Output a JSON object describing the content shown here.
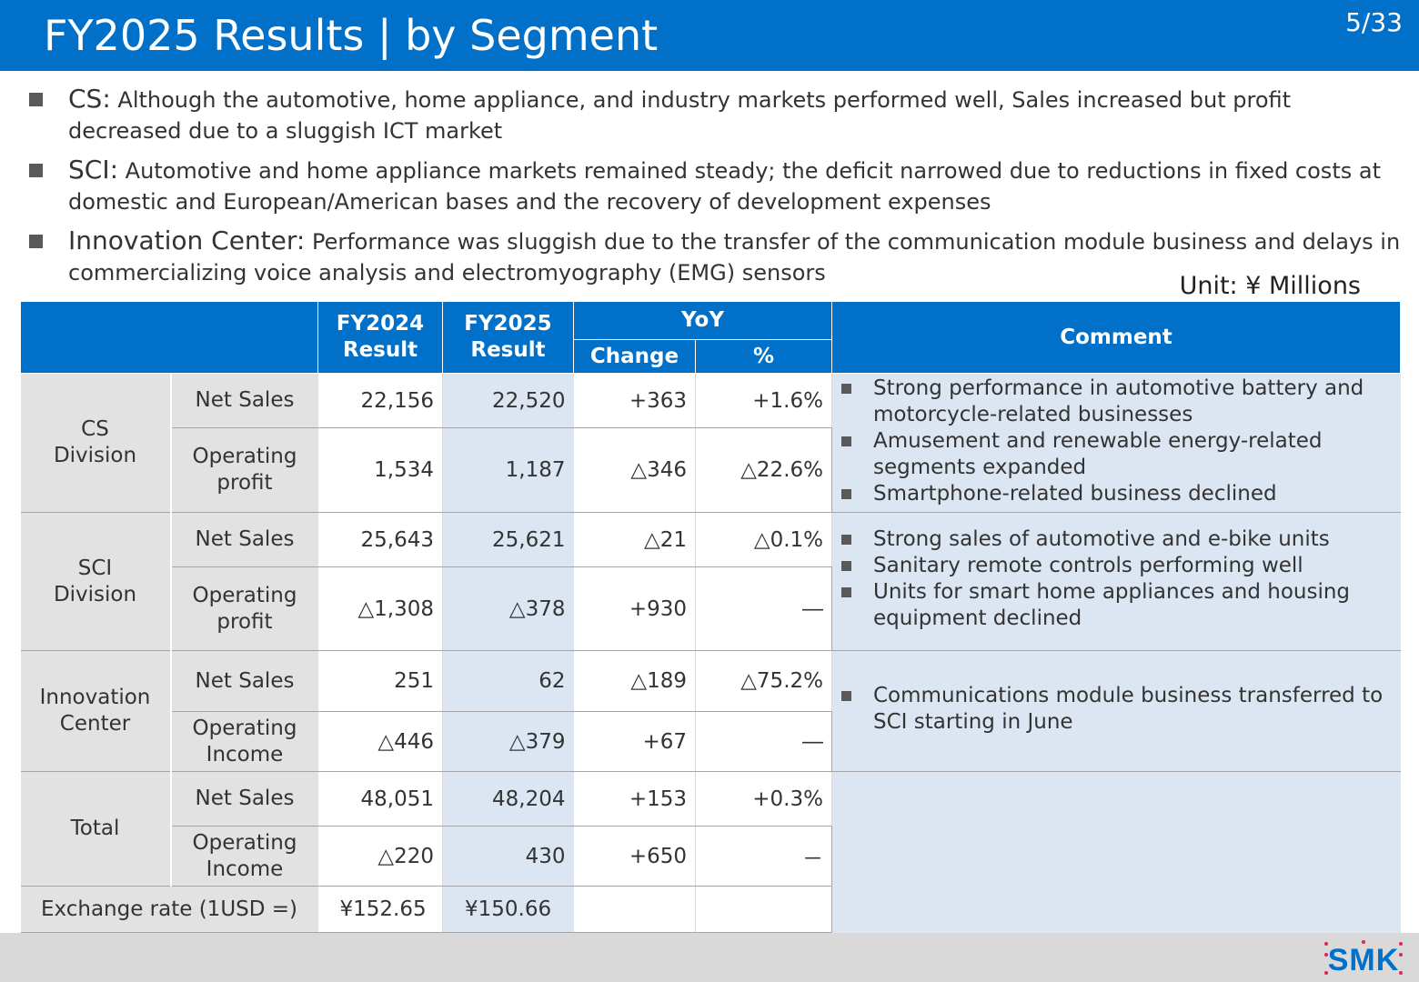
{
  "header": {
    "title": "FY2025 Results | by Segment",
    "page": "5/33"
  },
  "bullets": [
    {
      "head": "CS:",
      "text": " Although the automotive, home appliance, and industry markets performed well, Sales increased but profit decreased due to a sluggish ICT market"
    },
    {
      "head": "SCI:",
      "text": " Automotive and home appliance markets remained steady; the deficit narrowed due to reductions in fixed costs at domestic and European/American bases and the recovery of development expenses"
    },
    {
      "head": "Innovation Center:",
      "text": " Performance was sluggish due to the transfer of the communication module business and delays in commercializing voice analysis and electromyography (EMG) sensors"
    }
  ],
  "unit": "Unit: ¥ Millions",
  "table": {
    "headers": {
      "fy2024_line1": "FY2024",
      "fy2024_line2": "Result",
      "fy2025_line1": "FY2025",
      "fy2025_line2": "Result",
      "yoy": "YoY",
      "change": "Change",
      "pct": "%",
      "comment": "Comment"
    },
    "groups": [
      {
        "name_line1": "CS",
        "name_line2": "Division",
        "rows": [
          {
            "item_line1": "Net Sales",
            "item_line2": "",
            "fy2024": "22,156",
            "fy2025": "22,520",
            "change": "+363",
            "pct": "+1.6%"
          },
          {
            "item_line1": "Operating",
            "item_line2": "profit",
            "fy2024": "1,534",
            "fy2025": "1,187",
            "change": "△346",
            "pct": "△22.6%"
          }
        ],
        "comments": [
          "Strong performance in automotive battery and motorcycle-related businesses",
          "Amusement and renewable energy-related segments expanded",
          "Smartphone-related business declined"
        ]
      },
      {
        "name_line1": "SCI",
        "name_line2": "Division",
        "rows": [
          {
            "item_line1": "Net Sales",
            "item_line2": "",
            "fy2024": "25,643",
            "fy2025": "25,621",
            "change": "△21",
            "pct": "△0.1%"
          },
          {
            "item_line1": "Operating",
            "item_line2": "profit",
            "fy2024": "△1,308",
            "fy2025": "△378",
            "change": "+930",
            "pct": "―"
          }
        ],
        "comments": [
          "Strong sales of automotive and e-bike units",
          "Sanitary remote controls performing well",
          "Units for smart home appliances and housing equipment declined"
        ]
      },
      {
        "name_line1": "Innovation",
        "name_line2": "Center",
        "rows": [
          {
            "item_line1": "Net Sales",
            "item_line2": "",
            "fy2024": "251",
            "fy2025": "62",
            "change": "△189",
            "pct": "△75.2%"
          },
          {
            "item_line1": "Operating",
            "item_line2": "Income",
            "fy2024": "△446",
            "fy2025": "△379",
            "change": "+67",
            "pct": "―"
          }
        ],
        "comments": [
          "Communications module business transferred to SCI starting in June"
        ]
      },
      {
        "name_line1": "Total",
        "name_line2": "",
        "rows": [
          {
            "item_line1": "Net Sales",
            "item_line2": "",
            "fy2024": "48,051",
            "fy2025": "48,204",
            "change": "+153",
            "pct": "+0.3%"
          },
          {
            "item_line1": "Operating",
            "item_line2": "Income",
            "fy2024": "△220",
            "fy2025": "430",
            "change": "+650",
            "pct": "－"
          }
        ],
        "comments": []
      }
    ],
    "exchange": {
      "label": "Exchange rate (1USD =)",
      "fy2024": "¥152.65",
      "fy2025": "¥150.66"
    }
  },
  "logo": {
    "text": "SMK",
    "color": "#0070c8",
    "dot_color": "#e0245e"
  }
}
